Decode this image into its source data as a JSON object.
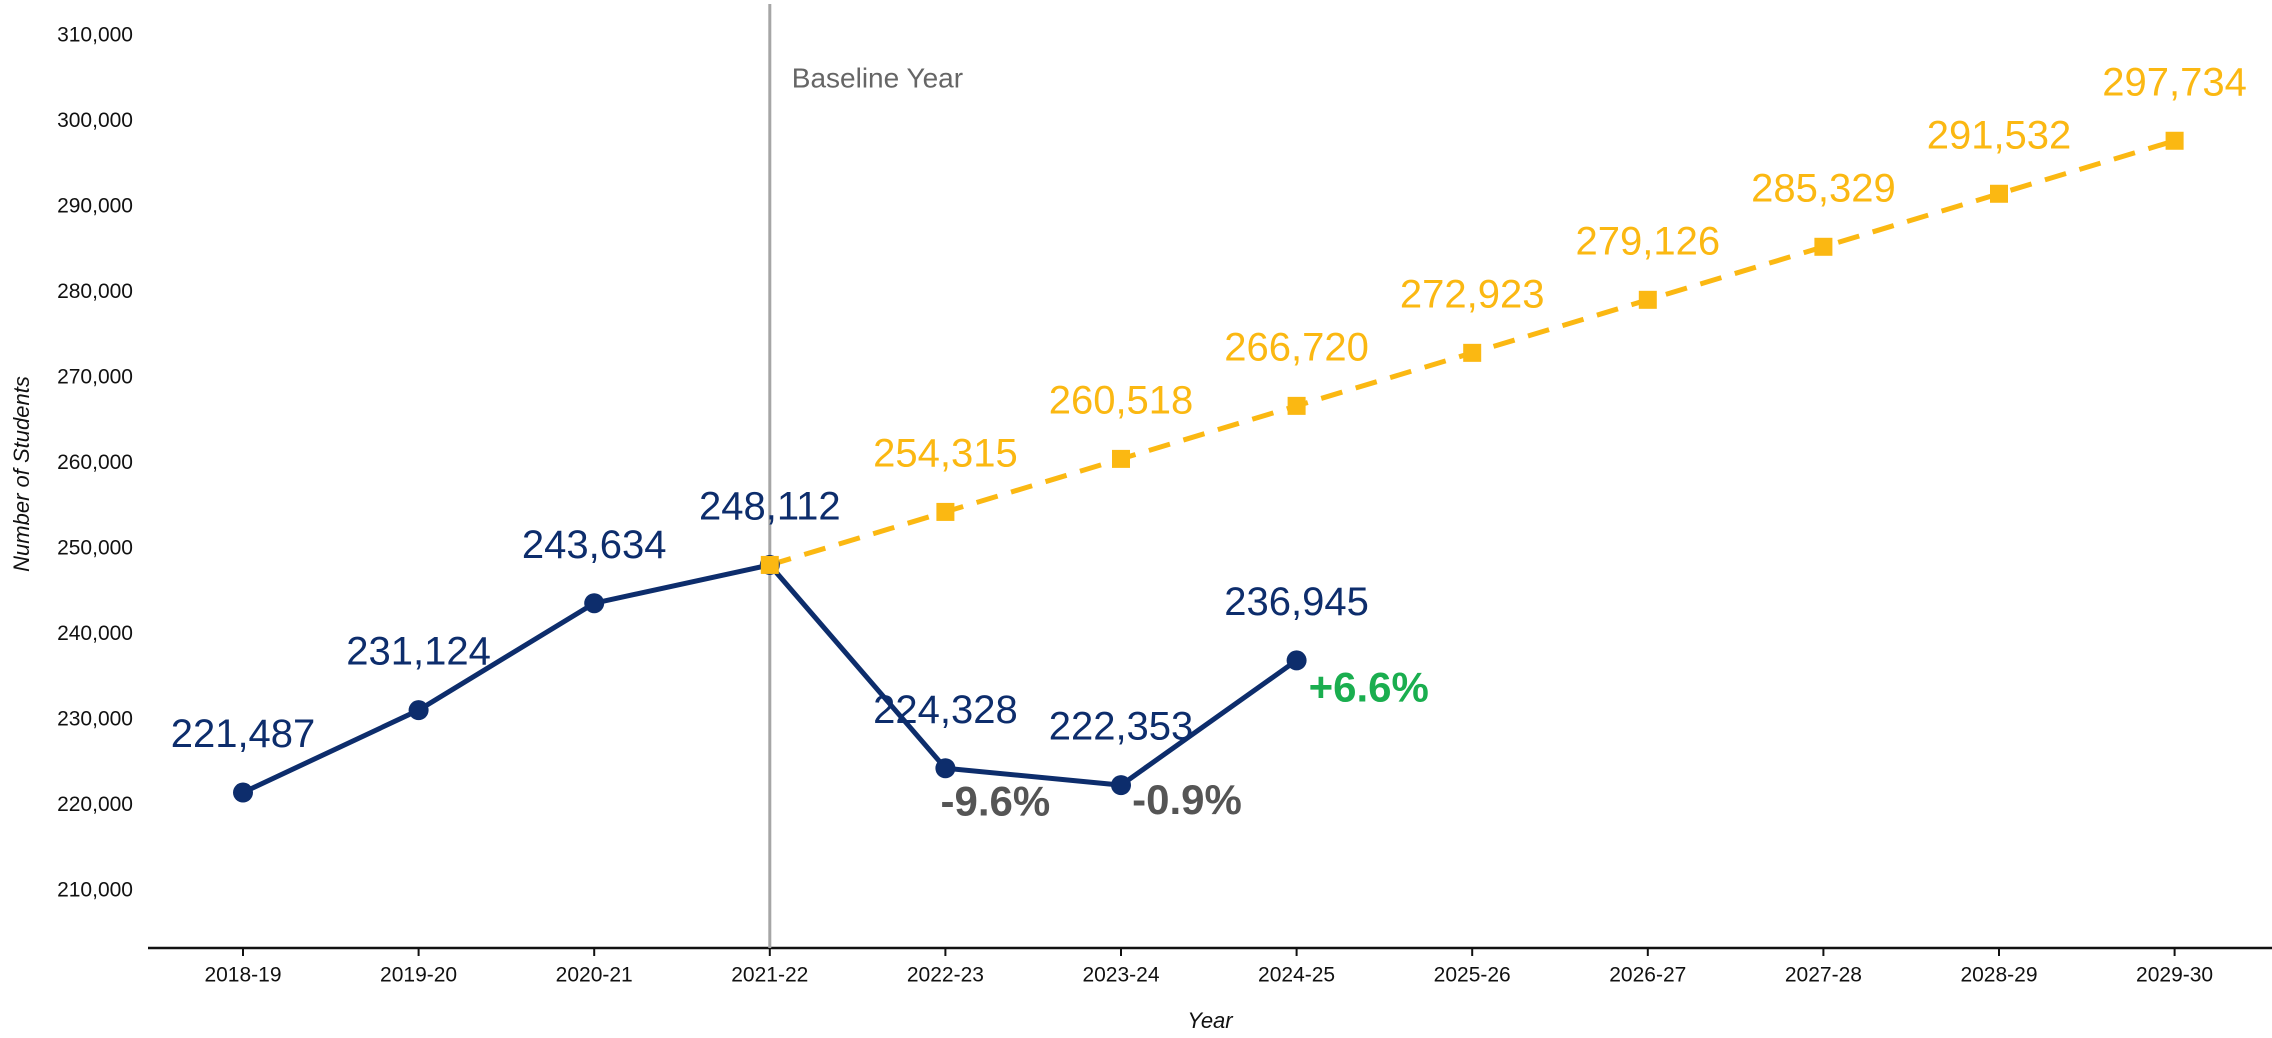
{
  "chart_data": {
    "type": "line",
    "x_label": "Year",
    "y_label": "Number of Students",
    "categories": [
      "2018-19",
      "2019-20",
      "2020-21",
      "2021-22",
      "2022-23",
      "2023-24",
      "2024-25",
      "2025-26",
      "2026-27",
      "2027-28",
      "2028-29",
      "2029-30"
    ],
    "series": [
      {
        "name": "Actual",
        "color": "#0d2d6c",
        "marker": "circle",
        "dashed": false,
        "values": [
          221487,
          231124,
          243634,
          248112,
          224328,
          222353,
          236945,
          null,
          null,
          null,
          null,
          null
        ],
        "value_labels": [
          "221,487",
          "231,124",
          "243,634",
          "248,112",
          "224,328",
          "222,353",
          "236,945",
          null,
          null,
          null,
          null,
          null
        ]
      },
      {
        "name": "Projected",
        "color": "#fbb812",
        "marker": "square",
        "dashed": true,
        "values": [
          null,
          null,
          null,
          248112,
          254315,
          260518,
          266720,
          272923,
          279126,
          285329,
          291532,
          297734
        ],
        "value_labels": [
          null,
          null,
          null,
          null,
          "254,315",
          "260,518",
          "266,720",
          "272,923",
          "279,126",
          "285,329",
          "291,532",
          "297,734"
        ]
      }
    ],
    "ylim": [
      203300,
      314200
    ],
    "yticks": [
      {
        "value": 210000,
        "label": "210,000"
      },
      {
        "value": 220000,
        "label": "220,000"
      },
      {
        "value": 230000,
        "label": "230,000"
      },
      {
        "value": 240000,
        "label": "240,000"
      },
      {
        "value": 250000,
        "label": "250,000"
      },
      {
        "value": 260000,
        "label": "260,000"
      },
      {
        "value": 270000,
        "label": "270,000"
      },
      {
        "value": 280000,
        "label": "280,000"
      },
      {
        "value": 290000,
        "label": "290,000"
      },
      {
        "value": 300000,
        "label": "300,000"
      },
      {
        "value": 310000,
        "label": "310,000"
      }
    ],
    "grid": false,
    "baseline": {
      "category": "2021-22",
      "label": "Baseline Year",
      "color": "#a6a6a6"
    },
    "annotations": [
      {
        "text": "-9.6%",
        "category": "2022-23",
        "color": "#555555"
      },
      {
        "text": "-0.9%",
        "category": "2023-24",
        "color": "#555555"
      },
      {
        "text": "+6.6%",
        "category": "2024-25",
        "color": "#1aae4f"
      }
    ]
  }
}
